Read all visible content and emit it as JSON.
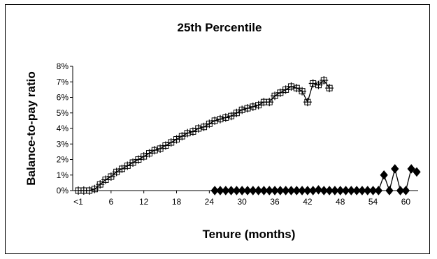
{
  "chart_data": {
    "type": "line",
    "title": "25th Percentile",
    "xlabel": "Tenure (months)",
    "ylabel": "Balance-to-pay ratio",
    "x_tick_labels": [
      "<1",
      "6",
      "12",
      "18",
      "24",
      "30",
      "36",
      "42",
      "48",
      "54",
      "60"
    ],
    "x_tick_positions": [
      0,
      6,
      12,
      18,
      24,
      30,
      36,
      42,
      48,
      54,
      60
    ],
    "y_tick_labels": [
      "0%",
      "1%",
      "2%",
      "3%",
      "4%",
      "5%",
      "6%",
      "7%",
      "8%"
    ],
    "ylim": [
      0,
      0.08
    ],
    "xlim": [
      0,
      62
    ],
    "grid": false,
    "legend": "none",
    "series": [
      {
        "marker": "square-plus",
        "color": "#000000",
        "x": [
          0,
          1,
          2,
          3,
          4,
          5,
          6,
          7,
          8,
          9,
          10,
          11,
          12,
          13,
          14,
          15,
          16,
          17,
          18,
          19,
          20,
          21,
          22,
          23,
          24,
          25,
          26,
          27,
          28,
          29,
          30,
          31,
          32,
          33,
          34,
          35,
          36,
          37,
          38,
          39,
          40,
          41,
          42,
          43,
          44,
          45,
          46,
          47
        ],
        "y": [
          0,
          0,
          0,
          0.001,
          0.004,
          0.007,
          0.009,
          0.012,
          0.014,
          0.016,
          0.018,
          0.02,
          0.022,
          0.024,
          0.026,
          0.027,
          0.029,
          0.031,
          0.033,
          0.035,
          0.037,
          0.038,
          0.04,
          0.041,
          0.043,
          0.045,
          0.046,
          0.047,
          0.048,
          0.05,
          0.052,
          0.053,
          0.054,
          0.055,
          0.057,
          0.057,
          0.061,
          0.063,
          0.065,
          0.067,
          0.066,
          0.064,
          0.057,
          0.069,
          0.068,
          0.071,
          0.066,
          null
        ]
      },
      {
        "marker": "diamond",
        "color": "#000000",
        "x": [
          25,
          26,
          27,
          28,
          29,
          30,
          31,
          32,
          33,
          34,
          35,
          36,
          37,
          38,
          39,
          40,
          41,
          42,
          43,
          44,
          45,
          46,
          47,
          48,
          49,
          50,
          51,
          52,
          53,
          54,
          55,
          56,
          57,
          58,
          59,
          60,
          61,
          62
        ],
        "y": [
          0,
          0,
          0,
          0,
          0,
          0,
          0,
          0,
          0,
          0,
          0,
          0,
          0,
          0,
          0,
          0,
          0,
          0,
          0,
          0.0005,
          0,
          0,
          0,
          0,
          0,
          0,
          0,
          0,
          0,
          0,
          0,
          0.01,
          0,
          0.014,
          0,
          0,
          0.014,
          0.012
        ]
      }
    ]
  }
}
